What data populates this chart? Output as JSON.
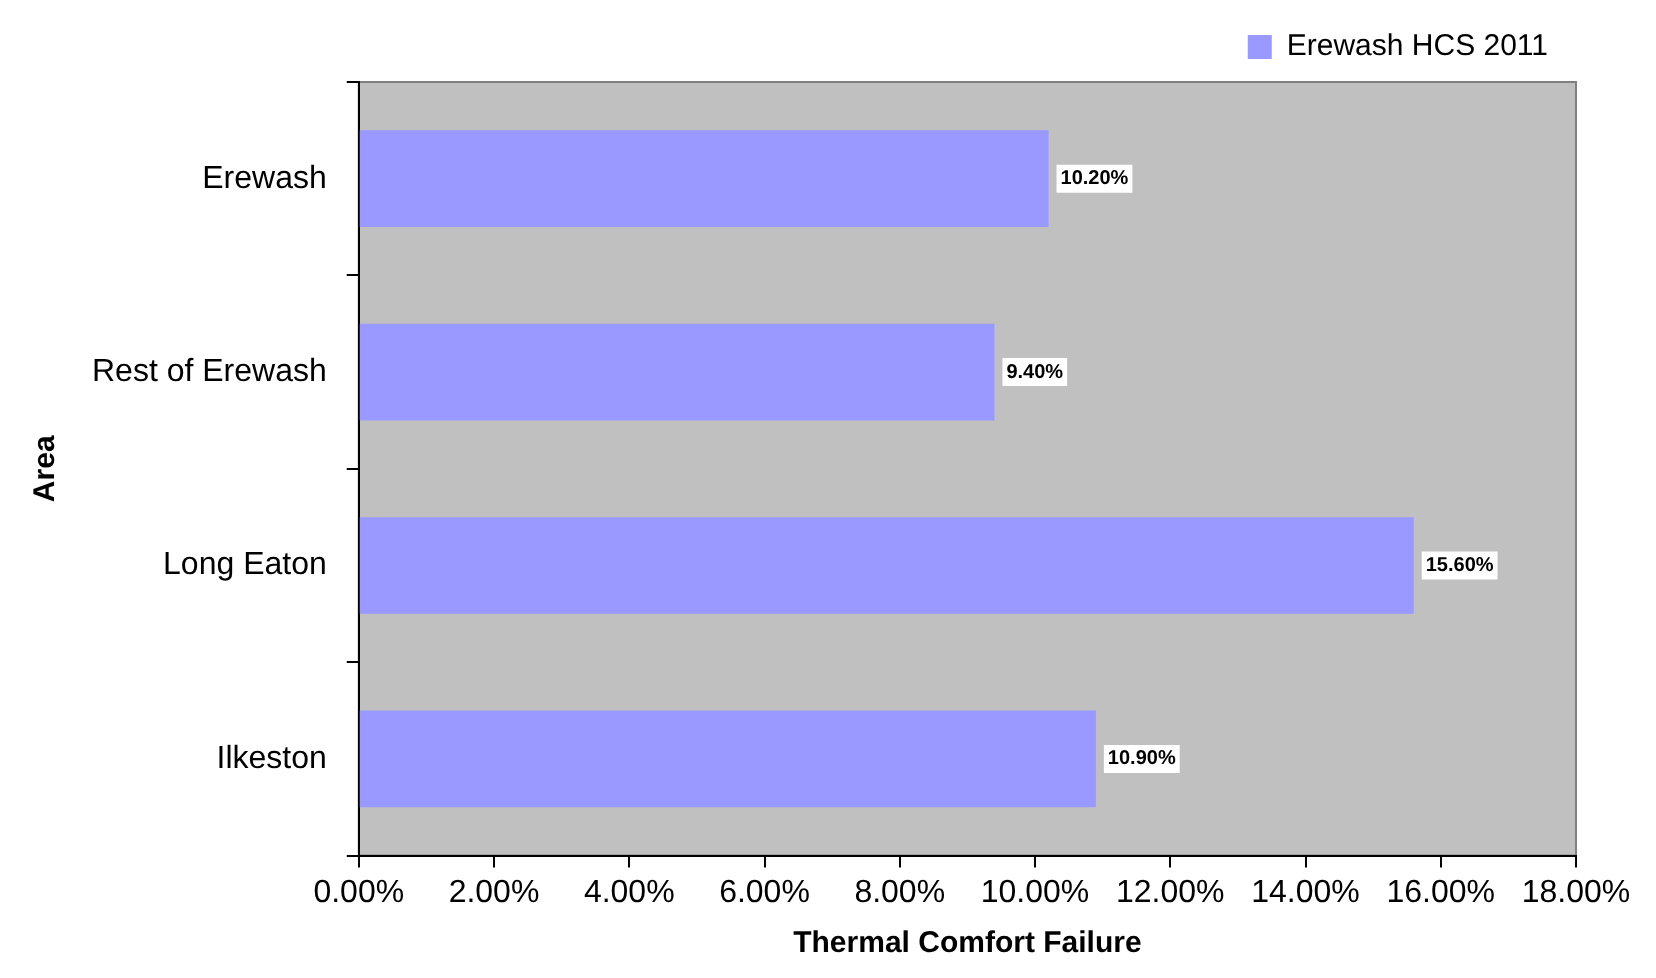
{
  "chart_data": {
    "type": "bar",
    "orientation": "horizontal",
    "xlabel": "Thermal Comfort Failure",
    "ylabel": "Area",
    "categories": [
      "Erewash",
      "Rest of Erewash",
      "Long Eaton",
      "Ilkeston"
    ],
    "series": [
      {
        "name": "Erewash HCS 2011",
        "color": "#9999ff",
        "values": [
          10.2,
          9.4,
          15.6,
          10.9
        ],
        "value_labels": [
          "10.20%",
          "9.40%",
          "15.60%",
          "10.90%"
        ]
      }
    ],
    "xlim": [
      0,
      18
    ],
    "xticks": [
      {
        "value": 0,
        "label": "0.00%"
      },
      {
        "value": 2,
        "label": "2.00%"
      },
      {
        "value": 4,
        "label": "4.00%"
      },
      {
        "value": 6,
        "label": "6.00%"
      },
      {
        "value": 8,
        "label": "8.00%"
      },
      {
        "value": 10,
        "label": "10.00%"
      },
      {
        "value": 12,
        "label": "12.00%"
      },
      {
        "value": 14,
        "label": "14.00%"
      },
      {
        "value": 16,
        "label": "16.00%"
      },
      {
        "value": 18,
        "label": "18.00%"
      }
    ],
    "grid": false,
    "legend": "top right"
  }
}
